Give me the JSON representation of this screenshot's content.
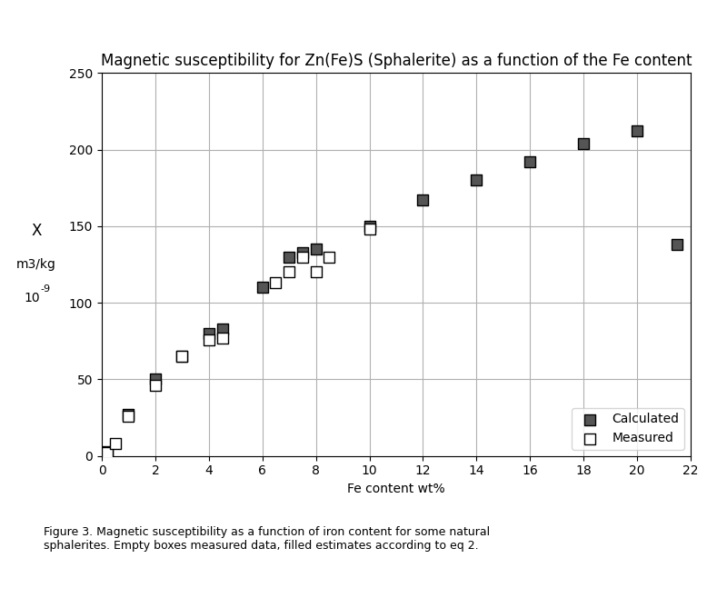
{
  "chart_data": {
    "type": "scatter",
    "title": "Magnetic susceptibility for Zn(Fe)S (Sphalerite) as a function of the Fe content",
    "x_label": "Fe content wt%",
    "y_label": [
      "X",
      "m3/kg",
      "-9",
      "10"
    ],
    "caption": "Figure 3. Magnetic susceptibility as a function of iron content for some natural\nsphalerites. Empty boxes measured data, filled estimates according to eq 2.",
    "xlim": [
      0,
      22
    ],
    "xticks": [
      0,
      2,
      4,
      6,
      8,
      10,
      12,
      14,
      16,
      18,
      20,
      22
    ],
    "ylim": [
      0,
      250
    ],
    "yticks": [
      0,
      50,
      100,
      150,
      200,
      250
    ],
    "grid": true,
    "legend": "lower right",
    "series": [
      {
        "name": "Calculated",
        "color": "#555555",
        "marker": "square",
        "x": [
          0.2,
          1.0,
          2.0,
          3.0,
          4.0,
          4.5,
          6.0,
          7.0,
          7.5,
          8.0,
          10.0,
          12.0,
          14.0,
          16.0,
          18.0,
          20.0,
          21.5
        ],
        "values": [
          3,
          27,
          50,
          65,
          80,
          83,
          110,
          130,
          133,
          135,
          150,
          167,
          180,
          192,
          204,
          212,
          138
        ]
      },
      {
        "name": "Measured",
        "color": "#ffffff",
        "marker": "square",
        "x": [
          0.2,
          0.5,
          1.0,
          2.0,
          3.0,
          4.0,
          4.5,
          6.5,
          7.0,
          7.5,
          8.0,
          8.5,
          10.0
        ],
        "values": [
          2,
          8,
          26,
          46,
          65,
          76,
          77,
          113,
          120,
          130,
          120,
          130,
          148
        ]
      }
    ]
  }
}
